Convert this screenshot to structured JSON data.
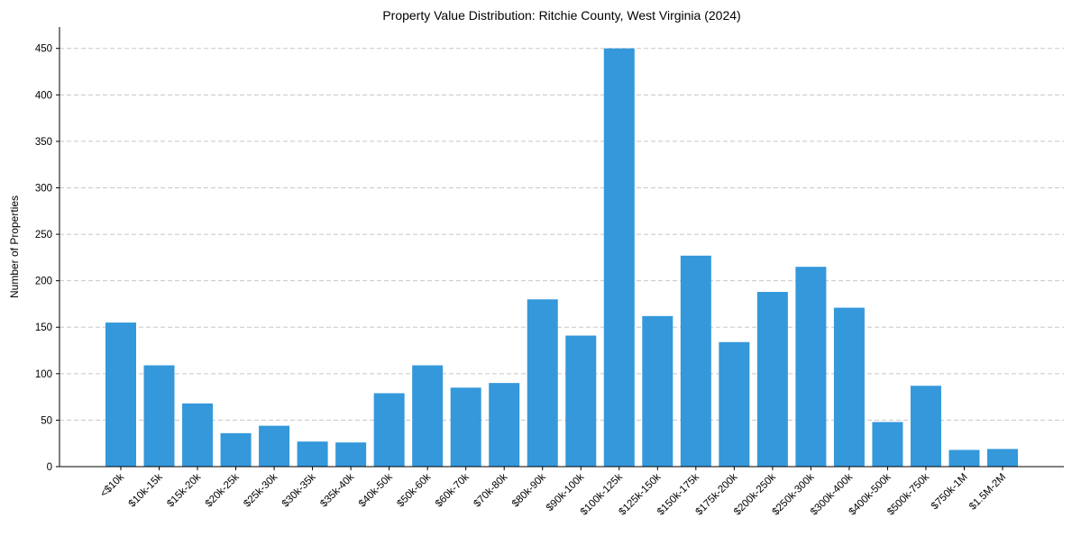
{
  "chart_data": {
    "type": "bar",
    "title": "Property Value Distribution: Ritchie County, West Virginia (2024)",
    "xlabel": "",
    "ylabel": "Number of Properties",
    "ylim": [
      0,
      473
    ],
    "yticks": [
      0,
      50,
      100,
      150,
      200,
      250,
      300,
      350,
      400,
      450
    ],
    "grid": "horizontal-dashed",
    "bar_color": "#3498db",
    "categories": [
      "<$10k",
      "$10k-15k",
      "$15k-20k",
      "$20k-25k",
      "$25k-30k",
      "$30k-35k",
      "$35k-40k",
      "$40k-50k",
      "$50k-60k",
      "$60k-70k",
      "$70k-80k",
      "$80k-90k",
      "$90k-100k",
      "$100k-125k",
      "$125k-150k",
      "$150k-175k",
      "$175k-200k",
      "$200k-250k",
      "$250k-300k",
      "$300k-400k",
      "$400k-500k",
      "$500k-750k",
      "$750k-1M",
      "$1.5M-2M"
    ],
    "values": [
      155,
      109,
      68,
      36,
      44,
      27,
      26,
      79,
      109,
      85,
      90,
      180,
      141,
      450,
      162,
      227,
      134,
      188,
      215,
      171,
      48,
      87,
      18,
      19
    ]
  }
}
